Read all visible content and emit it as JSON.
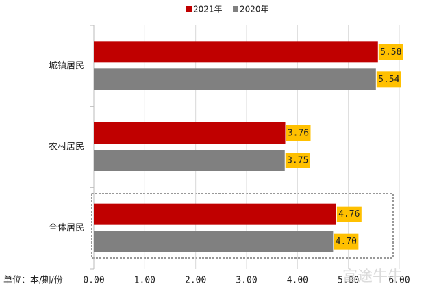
{
  "chart_data": {
    "type": "barh",
    "categories": [
      "城镇居民",
      "农村居民",
      "全体居民"
    ],
    "series": [
      {
        "name": "2021年",
        "color": "#c00000",
        "values": [
          5.58,
          3.76,
          4.76
        ],
        "value_labels": [
          "5.58",
          "3.76",
          "4.76"
        ]
      },
      {
        "name": "2020年",
        "color": "#808080",
        "values": [
          5.54,
          3.75,
          4.7
        ],
        "value_labels": [
          "5.54",
          "3.75",
          "4.70"
        ]
      }
    ],
    "xlim": [
      0,
      6
    ],
    "xticks": [
      {
        "value": 0,
        "label": "0.00"
      },
      {
        "value": 1,
        "label": "1.00"
      },
      {
        "value": 2,
        "label": "2.00"
      },
      {
        "value": 3,
        "label": "3.00"
      },
      {
        "value": 4,
        "label": "4.00"
      },
      {
        "value": 5,
        "label": "5.00"
      },
      {
        "value": 6,
        "label": "6.00"
      }
    ],
    "xlabel": "单位：本/期/份",
    "grid": true,
    "label_color": "#ffc000",
    "watermark": "富途牛牛"
  }
}
